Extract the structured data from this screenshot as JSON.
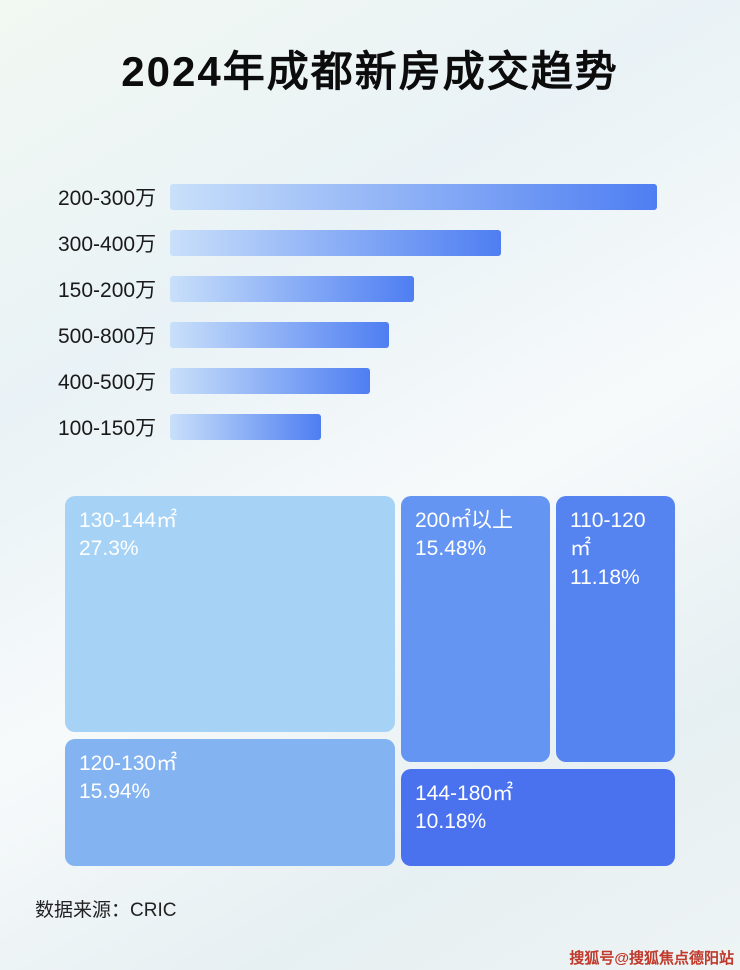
{
  "page": {
    "title": "2024年成都新房成交趋势",
    "source": "数据来源：CRIC",
    "watermark": "搜狐号@搜狐焦点德阳站"
  },
  "colors": {
    "bar_gradient_start": "#c9e0fa",
    "bar_gradient_end": "#4e7ef2",
    "watermark_red": "#c0392b"
  },
  "chart_data": [
    {
      "type": "bar",
      "orientation": "horizontal",
      "categories": [
        "200-300万",
        "300-400万",
        "150-200万",
        "500-800万",
        "400-500万",
        "100-150万"
      ],
      "values": [
        100,
        68,
        50,
        45,
        41,
        31
      ],
      "value_note": "relative bar lengths in % of longest bar (no numeric axis shown)",
      "xlabel": "",
      "ylabel": "",
      "legend": "none",
      "grid": false
    },
    {
      "type": "treemap",
      "items": [
        {
          "label": "130-144㎡",
          "value": 27.3,
          "value_text": "27.3%",
          "color": "#a6d2f6"
        },
        {
          "label": "120-130㎡",
          "value": 15.94,
          "value_text": "15.94%",
          "color": "#83b3f0"
        },
        {
          "label": "200㎡以上",
          "value": 15.48,
          "value_text": "15.48%",
          "color": "#6595f3"
        },
        {
          "label": "110-120㎡",
          "value": 11.18,
          "value_text": "11.18%",
          "color": "#5584f0"
        },
        {
          "label": "144-180㎡",
          "value": 10.18,
          "value_text": "10.18%",
          "color": "#4a71ee"
        }
      ]
    }
  ]
}
